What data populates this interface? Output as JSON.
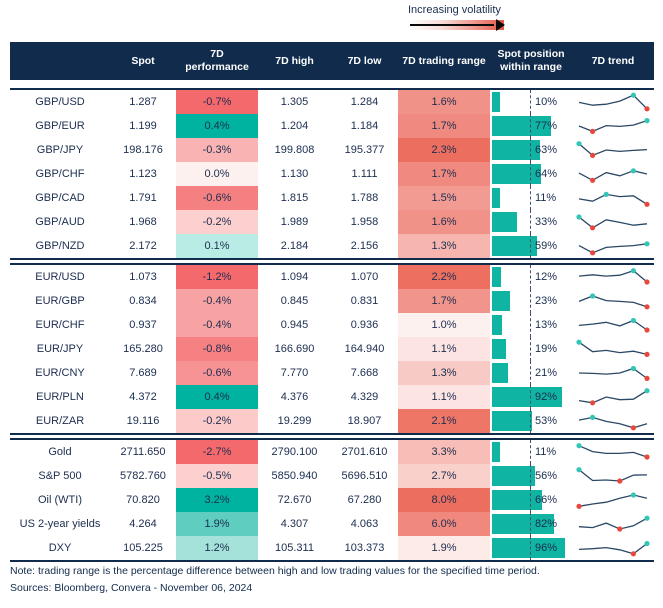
{
  "legend": {
    "label": "Increasing volatility"
  },
  "colors": {
    "header_bg": "#112b4c",
    "text": "#1b2d4f",
    "bar": "#10b4a2",
    "spark_line": "#2b4865",
    "dot_low": "#e8483c",
    "dot_high": "#33c6b7",
    "positive_strong": "#00b2a0",
    "negative_strong": "#f4696c"
  },
  "chart_data": {
    "type": "table",
    "columns": [
      "",
      "Spot",
      "7D performance",
      "7D high",
      "7D low",
      "7D trading range",
      "Spot position within range",
      "7D trend"
    ],
    "sections": [
      {
        "rows": [
          {
            "name": "GBP/USD",
            "spot": "1.287",
            "performance": "-0.7%",
            "performance_color": "#f4696c",
            "high": "1.305",
            "low": "1.284",
            "trading_range": "1.6%",
            "trading_range_color": "#f19289",
            "spot_position_pct": 10,
            "spot_position_label": "10%",
            "trend": [
              48,
              32,
              38,
              55,
              88,
              12
            ]
          },
          {
            "name": "GBP/EUR",
            "spot": "1.199",
            "performance": "0.4%",
            "performance_color": "#00b2a0",
            "high": "1.204",
            "low": "1.184",
            "trading_range": "1.7%",
            "trading_range_color": "#f08a80",
            "spot_position_pct": 77,
            "spot_position_label": "77%",
            "trend": [
              50,
              20,
              52,
              48,
              55,
              80
            ]
          },
          {
            "name": "GBP/JPY",
            "spot": "198.176",
            "performance": "-0.3%",
            "performance_color": "#f9b3b2",
            "high": "199.808",
            "low": "195.377",
            "trading_range": "2.3%",
            "trading_range_color": "#ec6e5f",
            "spot_position_pct": 63,
            "spot_position_label": "63%",
            "trend": [
              85,
              20,
              50,
              42,
              48,
              52
            ]
          },
          {
            "name": "GBP/CHF",
            "spot": "1.123",
            "performance": "0.0%",
            "performance_color": "#fdf1f0",
            "high": "1.130",
            "low": "1.111",
            "trading_range": "1.7%",
            "trading_range_color": "#f08a80",
            "spot_position_pct": 64,
            "spot_position_label": "64%",
            "trend": [
              55,
              15,
              58,
              40,
              68,
              50
            ]
          },
          {
            "name": "GBP/CAD",
            "spot": "1.791",
            "performance": "-0.6%",
            "performance_color": "#f58082",
            "high": "1.815",
            "low": "1.788",
            "trading_range": "1.5%",
            "trading_range_color": "#f29b93",
            "spot_position_pct": 11,
            "spot_position_label": "11%",
            "trend": [
              45,
              32,
              70,
              58,
              62,
              15
            ]
          },
          {
            "name": "GBP/AUD",
            "spot": "1.968",
            "performance": "-0.2%",
            "performance_color": "#fbd0ce",
            "high": "1.989",
            "low": "1.958",
            "trading_range": "1.6%",
            "trading_range_color": "#f19289",
            "spot_position_pct": 33,
            "spot_position_label": "33%",
            "trend": [
              78,
              18,
              62,
              48,
              32,
              40
            ]
          },
          {
            "name": "GBP/NZD",
            "spot": "2.172",
            "performance": "0.1%",
            "performance_color": "#b9ece5",
            "high": "2.184",
            "low": "2.156",
            "trading_range": "1.3%",
            "trading_range_color": "#f6b6af",
            "spot_position_pct": 59,
            "spot_position_label": "59%",
            "trend": [
              52,
              12,
              42,
              48,
              52,
              62
            ]
          }
        ]
      },
      {
        "rows": [
          {
            "name": "EUR/USD",
            "spot": "1.073",
            "performance": "-1.2%",
            "performance_color": "#f4696c",
            "high": "1.094",
            "low": "1.070",
            "trading_range": "2.2%",
            "trading_range_color": "#ed6f60",
            "spot_position_pct": 12,
            "spot_position_label": "12%",
            "trend": [
              55,
              62,
              55,
              60,
              85,
              22
            ]
          },
          {
            "name": "EUR/GBP",
            "spot": "0.834",
            "performance": "-0.4%",
            "performance_color": "#f8a3a3",
            "high": "0.845",
            "low": "0.831",
            "trading_range": "1.7%",
            "trading_range_color": "#f1948b",
            "spot_position_pct": 23,
            "spot_position_label": "23%",
            "trend": [
              48,
              78,
              52,
              48,
              42,
              18
            ]
          },
          {
            "name": "EUR/CHF",
            "spot": "0.937",
            "performance": "-0.4%",
            "performance_color": "#f8a3a3",
            "high": "0.945",
            "low": "0.936",
            "trading_range": "1.0%",
            "trading_range_color": "#fdf1f0",
            "spot_position_pct": 13,
            "spot_position_label": "13%",
            "trend": [
              48,
              55,
              65,
              45,
              75,
              22
            ]
          },
          {
            "name": "EUR/JPY",
            "spot": "165.280",
            "performance": "-0.8%",
            "performance_color": "#f58183",
            "high": "166.690",
            "low": "164.940",
            "trading_range": "1.1%",
            "trading_range_color": "#fce4e2",
            "spot_position_pct": 19,
            "spot_position_label": "19%",
            "trend": [
              88,
              35,
              42,
              30,
              38,
              20
            ]
          },
          {
            "name": "EUR/CNY",
            "spot": "7.689",
            "performance": "-0.6%",
            "performance_color": "#f79395",
            "high": "7.770",
            "low": "7.668",
            "trading_range": "1.3%",
            "trading_range_color": "#f8cac5",
            "spot_position_pct": 21,
            "spot_position_label": "21%",
            "trend": [
              50,
              48,
              44,
              50,
              75,
              20
            ]
          },
          {
            "name": "EUR/PLN",
            "spot": "4.372",
            "performance": "0.4%",
            "performance_color": "#00b2a0",
            "high": "4.376",
            "low": "4.329",
            "trading_range": "1.1%",
            "trading_range_color": "#fce4e2",
            "spot_position_pct": 92,
            "spot_position_label": "92%",
            "trend": [
              30,
              18,
              50,
              35,
              38,
              85
            ]
          },
          {
            "name": "EUR/ZAR",
            "spot": "19.116",
            "performance": "-0.2%",
            "performance_color": "#fbcac9",
            "high": "19.299",
            "low": "18.907",
            "trading_range": "2.1%",
            "trading_range_color": "#ee7667",
            "spot_position_pct": 53,
            "spot_position_label": "53%",
            "trend": [
              55,
              70,
              48,
              35,
              12,
              35
            ]
          }
        ]
      },
      {
        "rows": [
          {
            "name": "Gold",
            "spot": "2711.650",
            "performance": "-2.7%",
            "performance_color": "#f4696c",
            "high": "2790.100",
            "low": "2701.610",
            "trading_range": "3.3%",
            "trading_range_color": "#f8bdb6",
            "spot_position_pct": 11,
            "spot_position_label": "11%",
            "trend": [
              85,
              52,
              42,
              42,
              48,
              22
            ]
          },
          {
            "name": "S&P 500",
            "spot": "5782.760",
            "performance": "-0.5%",
            "performance_color": "#fbd0cf",
            "high": "5850.940",
            "low": "5696.510",
            "trading_range": "2.7%",
            "trading_range_color": "#fad0ca",
            "spot_position_pct": 56,
            "spot_position_label": "56%",
            "trend": [
              85,
              25,
              28,
              22,
              55,
              56
            ]
          },
          {
            "name": "Oil (WTI)",
            "spot": "70.820",
            "performance": "3.2%",
            "performance_color": "#00b2a0",
            "high": "72.670",
            "low": "67.280",
            "trading_range": "8.0%",
            "trading_range_color": "#ec6e5f",
            "spot_position_pct": 66,
            "spot_position_label": "66%",
            "trend": [
              15,
              28,
              38,
              60,
              78,
              60
            ]
          },
          {
            "name": "US 2-year yields",
            "spot": "4.264",
            "performance": "1.9%",
            "performance_color": "#5fcdbf",
            "high": "4.307",
            "low": "4.063",
            "trading_range": "6.0%",
            "trading_range_color": "#f0887d",
            "spot_position_pct": 82,
            "spot_position_label": "82%",
            "trend": [
              35,
              30,
              55,
              22,
              40,
              82
            ]
          },
          {
            "name": "DXY",
            "spot": "105.225",
            "performance": "1.2%",
            "performance_color": "#a5e2d9",
            "high": "105.311",
            "low": "103.373",
            "trading_range": "1.9%",
            "trading_range_color": "#fdebe8",
            "spot_position_pct": 96,
            "spot_position_label": "96%",
            "trend": [
              42,
              46,
              52,
              40,
              18,
              75
            ]
          }
        ]
      }
    ]
  },
  "footer": {
    "note": "Note: trading range is the percentage difference between high and low trading values for the specified time period.",
    "sources": "Sources: Bloomberg, Convera - November 06, 2024"
  }
}
